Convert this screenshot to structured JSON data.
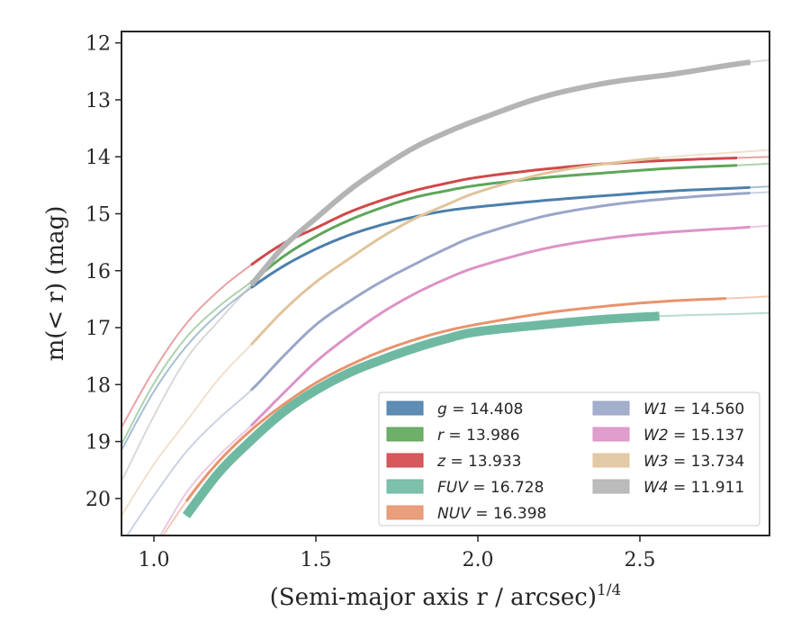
{
  "chart_data": {
    "type": "line",
    "title": "",
    "xlabel": "(Semi-major axis r / arcsec)",
    "xlabel_exponent": "1/4",
    "ylabel": "m(< r) (mag)",
    "xlim": [
      0.9,
      2.9
    ],
    "ylim": [
      20.65,
      11.8
    ],
    "y_inverted": true,
    "grid": false,
    "legend_position": "lower-right",
    "legend_columns": 2,
    "x_ticks": [
      "1.0",
      "1.5",
      "2.0",
      "2.5"
    ],
    "y_ticks": [
      "12",
      "13",
      "14",
      "15",
      "16",
      "17",
      "18",
      "19",
      "20"
    ],
    "series": [
      {
        "name": "g",
        "label": "g = 14.408",
        "color": "#4c7fab",
        "x": [
          0.9,
          1.0,
          1.1,
          1.2,
          1.3,
          1.4,
          1.5,
          1.6,
          1.7,
          1.8,
          1.9,
          2.0,
          2.2,
          2.4,
          2.6,
          2.8,
          2.9
        ],
        "y": [
          19.15,
          18.12,
          17.33,
          16.75,
          16.3,
          15.92,
          15.62,
          15.38,
          15.2,
          15.06,
          14.95,
          14.88,
          14.77,
          14.68,
          14.6,
          14.55,
          14.52
        ],
        "thick_range": [
          1.3,
          2.85
        ]
      },
      {
        "name": "r",
        "label": "r = 13.986",
        "color": "#5ea65a",
        "x": [
          0.9,
          1.0,
          1.1,
          1.2,
          1.3,
          1.4,
          1.5,
          1.6,
          1.7,
          1.8,
          1.9,
          2.0,
          2.2,
          2.4,
          2.6,
          2.8,
          2.9
        ],
        "y": [
          19.05,
          17.98,
          17.17,
          16.63,
          16.2,
          15.75,
          15.4,
          15.12,
          14.9,
          14.72,
          14.6,
          14.5,
          14.37,
          14.28,
          14.2,
          14.15,
          14.12
        ],
        "thick_range": [
          1.3,
          2.8
        ]
      },
      {
        "name": "z",
        "label": "z = 13.933",
        "color": "#d1484a",
        "x": [
          0.9,
          1.0,
          1.1,
          1.2,
          1.3,
          1.4,
          1.5,
          1.6,
          1.7,
          1.8,
          1.9,
          2.0,
          2.2,
          2.4,
          2.6,
          2.8,
          2.9
        ],
        "y": [
          18.75,
          17.75,
          16.93,
          16.35,
          15.9,
          15.52,
          15.25,
          14.98,
          14.77,
          14.6,
          14.47,
          14.36,
          14.22,
          14.12,
          14.06,
          14.02,
          14.0
        ],
        "thick_range": [
          1.3,
          2.8
        ]
      },
      {
        "name": "FUV",
        "label": "FUV = 16.728",
        "color": "#6fb9a2",
        "x": [
          1.1,
          1.2,
          1.3,
          1.4,
          1.5,
          1.6,
          1.7,
          1.8,
          1.9,
          2.0,
          2.2,
          2.4,
          2.6,
          2.8,
          2.9
        ],
        "y": [
          20.3,
          19.55,
          18.98,
          18.48,
          18.1,
          17.8,
          17.57,
          17.37,
          17.2,
          17.07,
          16.95,
          16.85,
          16.79,
          16.76,
          16.74
        ],
        "thick_range": [
          1.1,
          2.57
        ]
      },
      {
        "name": "NUV",
        "label": "NUV = 16.398",
        "color": "#e8936d",
        "x": [
          1.0,
          1.1,
          1.2,
          1.3,
          1.4,
          1.5,
          1.6,
          1.7,
          1.8,
          1.9,
          2.0,
          2.2,
          2.4,
          2.6,
          2.8,
          2.9
        ],
        "y": [
          20.9,
          20.05,
          19.35,
          18.8,
          18.35,
          17.97,
          17.67,
          17.42,
          17.22,
          17.06,
          16.94,
          16.75,
          16.62,
          16.53,
          16.48,
          16.45
        ],
        "thick_range": [
          1.1,
          2.78
        ]
      },
      {
        "name": "W1",
        "label": "W1 = 14.560",
        "color": "#9aa6c8",
        "x": [
          0.9,
          1.0,
          1.1,
          1.2,
          1.3,
          1.4,
          1.5,
          1.6,
          1.7,
          1.8,
          1.9,
          2.0,
          2.2,
          2.4,
          2.6,
          2.8,
          2.9
        ],
        "y": [
          20.8,
          19.95,
          19.18,
          18.6,
          18.1,
          17.5,
          16.95,
          16.55,
          16.2,
          15.9,
          15.62,
          15.38,
          15.05,
          14.85,
          14.73,
          14.65,
          14.62
        ],
        "thick_range": [
          1.3,
          2.85
        ]
      },
      {
        "name": "W2",
        "label": "W2 = 15.137",
        "color": "#dc93c7",
        "x": [
          1.0,
          1.1,
          1.2,
          1.3,
          1.4,
          1.5,
          1.6,
          1.7,
          1.8,
          1.9,
          2.0,
          2.2,
          2.4,
          2.6,
          2.8,
          2.9
        ],
        "y": [
          20.85,
          19.9,
          19.25,
          18.72,
          18.15,
          17.6,
          17.15,
          16.75,
          16.42,
          16.15,
          15.93,
          15.62,
          15.43,
          15.32,
          15.25,
          15.21
        ],
        "thick_range": [
          1.3,
          2.85
        ]
      },
      {
        "name": "W3",
        "label": "W3 = 13.734",
        "color": "#e0c49c",
        "x": [
          0.9,
          1.0,
          1.1,
          1.2,
          1.3,
          1.4,
          1.5,
          1.6,
          1.7,
          1.8,
          1.9,
          2.0,
          2.2,
          2.4,
          2.6,
          2.8,
          2.9
        ],
        "y": [
          20.3,
          19.4,
          18.65,
          17.9,
          17.3,
          16.7,
          16.2,
          15.8,
          15.42,
          15.1,
          14.85,
          14.62,
          14.3,
          14.12,
          14.0,
          13.92,
          13.88
        ],
        "thick_range": [
          1.3,
          2.57
        ]
      },
      {
        "name": "W4",
        "label": "W4 = 11.911",
        "color": "#b4b4b4",
        "x": [
          0.9,
          1.0,
          1.1,
          1.2,
          1.3,
          1.4,
          1.5,
          1.6,
          1.7,
          1.8,
          1.9,
          2.0,
          2.2,
          2.4,
          2.6,
          2.8,
          2.9
        ],
        "y": [
          19.7,
          18.55,
          17.55,
          16.88,
          16.25,
          15.58,
          15.08,
          14.6,
          14.2,
          13.85,
          13.58,
          13.35,
          12.95,
          12.7,
          12.55,
          12.37,
          12.3
        ],
        "thick_range": [
          1.3,
          2.85
        ]
      }
    ]
  }
}
